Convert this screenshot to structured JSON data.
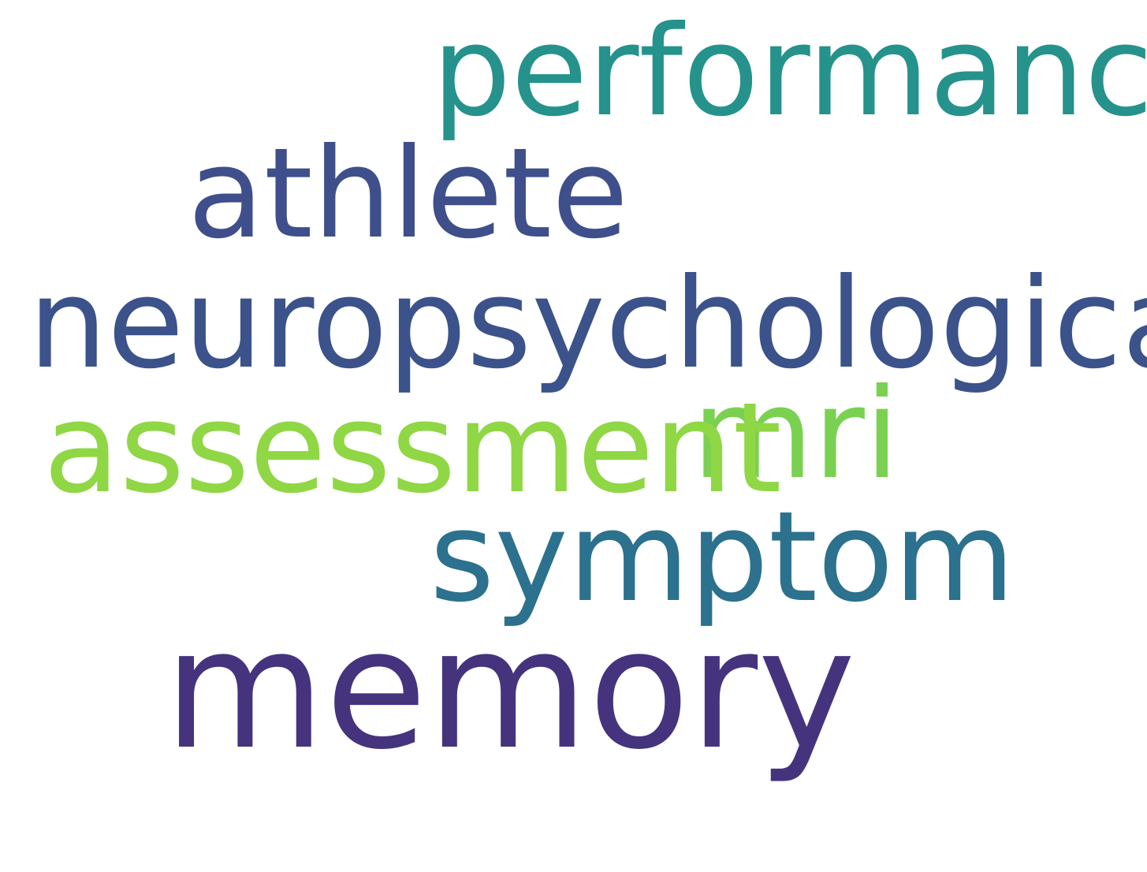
{
  "words": [
    {
      "id": "performance",
      "text": "performance",
      "color": "#26928c"
    },
    {
      "id": "athlete",
      "text": "athlete",
      "color": "#3e4f8b"
    },
    {
      "id": "neuropsychological",
      "text": "neuropsychological",
      "color": "#3b528b"
    },
    {
      "id": "mri",
      "text": "mri",
      "color": "#7ad151"
    },
    {
      "id": "assessment",
      "text": "assessment",
      "color": "#8fd744"
    },
    {
      "id": "symptom",
      "text": "symptom",
      "color": "#2c718e"
    },
    {
      "id": "memory",
      "text": "memory",
      "color": "#46337e"
    }
  ]
}
